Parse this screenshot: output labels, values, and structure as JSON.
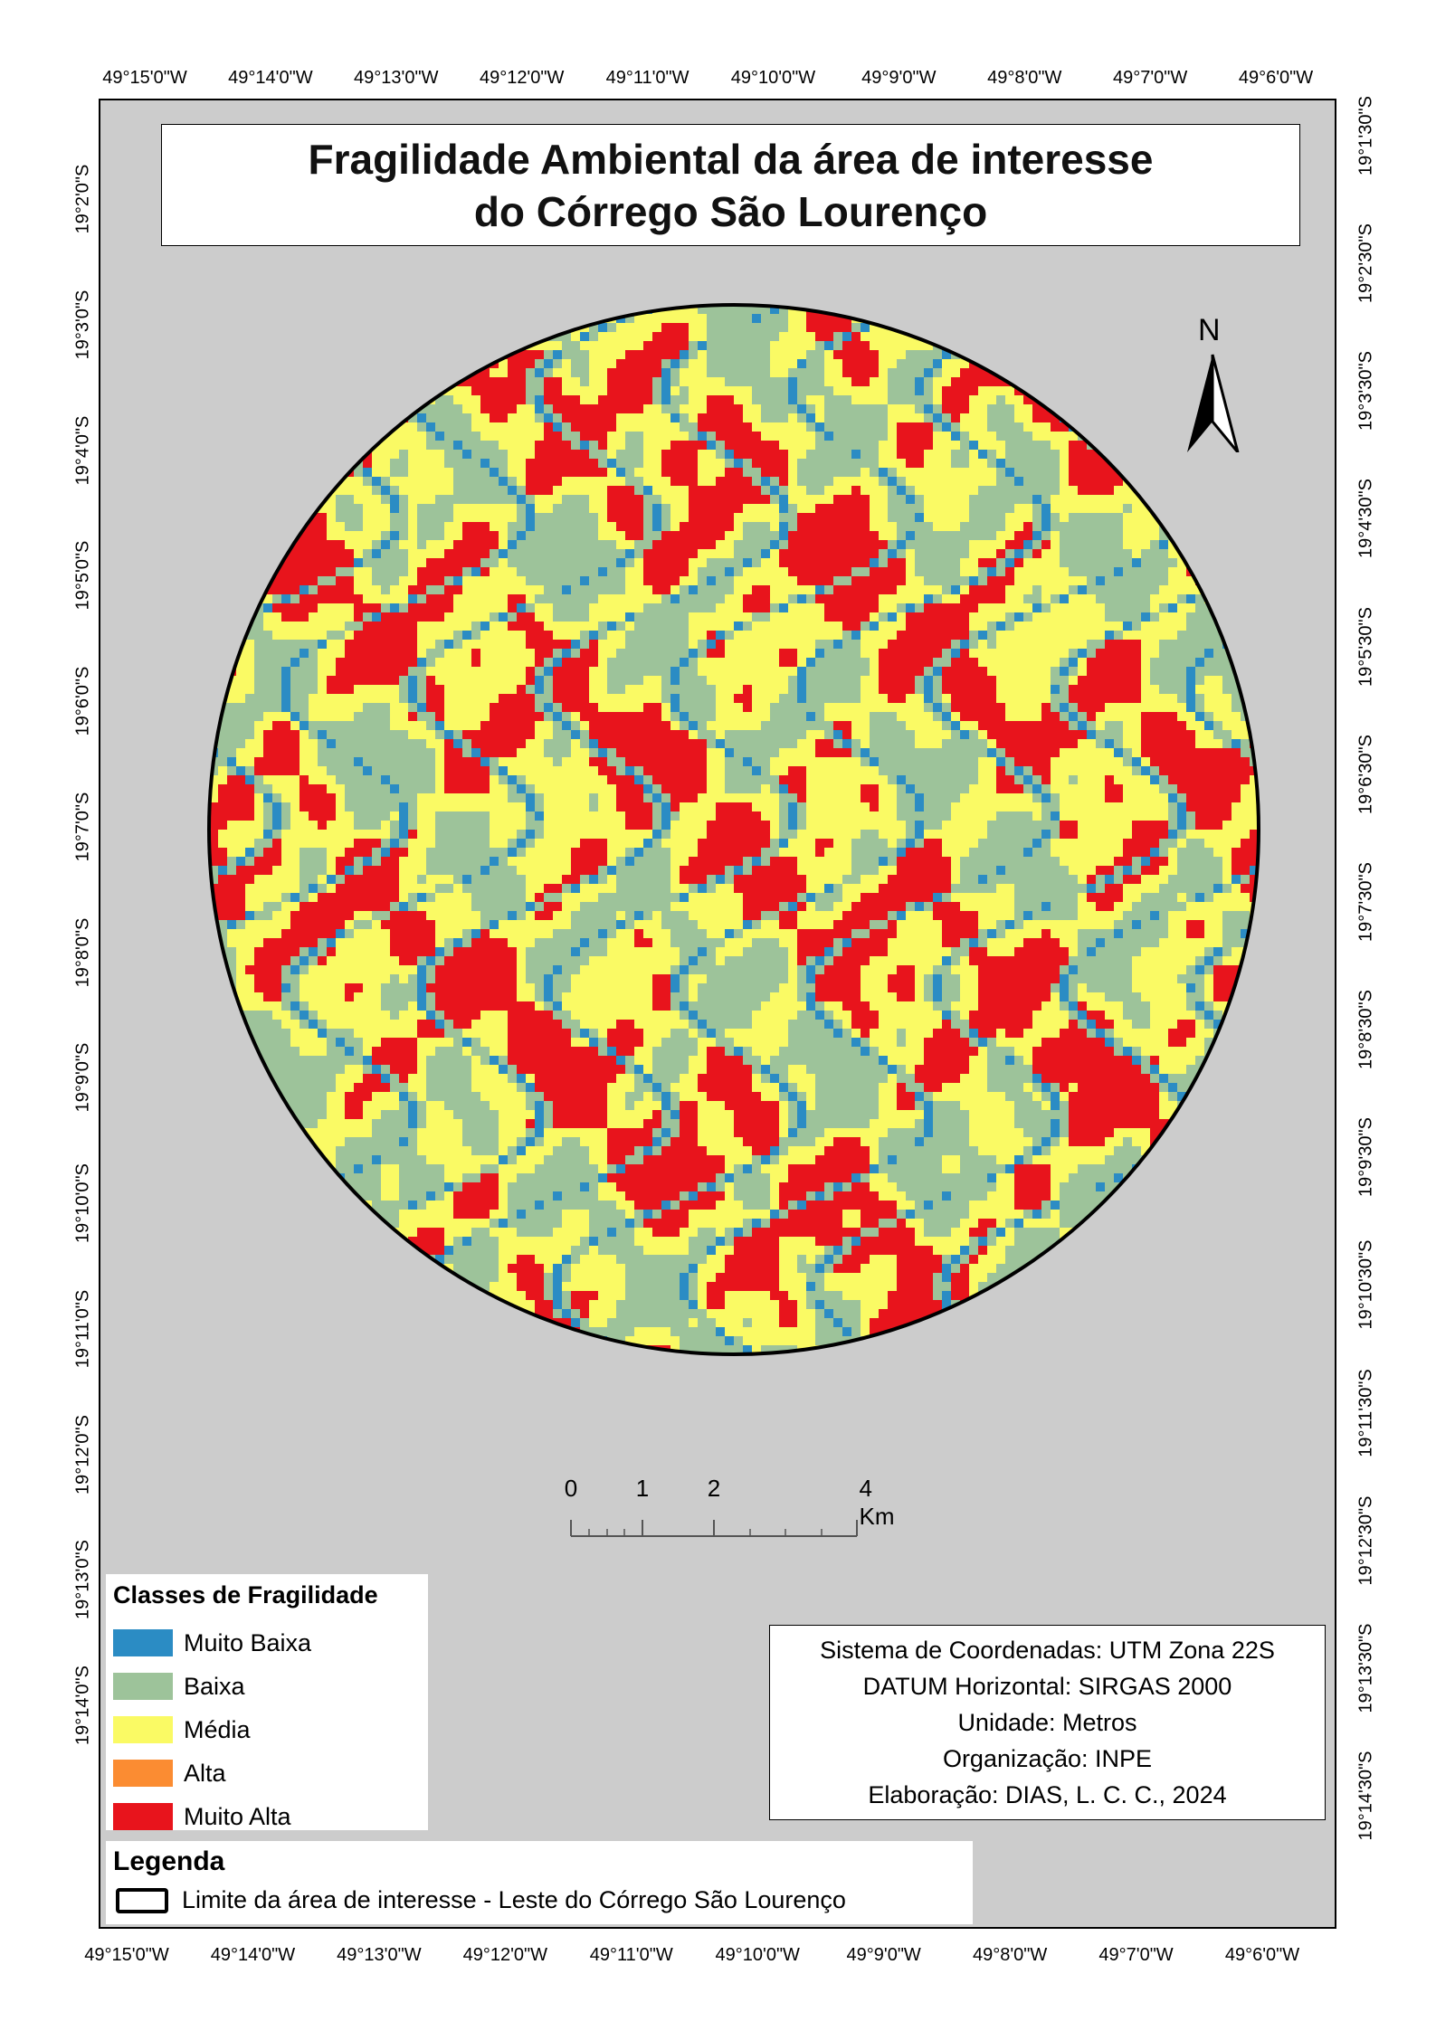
{
  "title": {
    "line1": "Fragilidade Ambiental da área de interesse",
    "line2": "do Córrego São Lourenço"
  },
  "graticule": {
    "longitude_labels": [
      "49°15'0\"W",
      "49°14'0\"W",
      "49°13'0\"W",
      "49°12'0\"W",
      "49°11'0\"W",
      "49°10'0\"W",
      "49°9'0\"W",
      "49°8'0\"W",
      "49°7'0\"W",
      "49°6'0\"W"
    ],
    "left_latitude_labels": [
      "19°2'0\"S",
      "19°3'0\"S",
      "19°4'0\"S",
      "19°5'0\"S",
      "19°6'0\"S",
      "19°7'0\"S",
      "19°8'0\"S",
      "19°9'0\"S",
      "19°10'0\"S",
      "19°11'0\"S",
      "19°12'0\"S",
      "19°13'0\"S",
      "19°14'0\"S"
    ],
    "right_latitude_labels": [
      "19°1'30\"S",
      "19°2'30\"S",
      "19°3'30\"S",
      "19°4'30\"S",
      "19°5'30\"S",
      "19°6'30\"S",
      "19°7'30\"S",
      "19°8'30\"S",
      "19°9'30\"S",
      "19°10'30\"S",
      "19°11'30\"S",
      "19°12'30\"S",
      "19°13'30\"S",
      "19°14'30\"S"
    ]
  },
  "north_arrow": {
    "label": "N",
    "icon": "north-arrow-icon"
  },
  "scale_bar": {
    "labels": [
      "0",
      "1",
      "2",
      "4 Km"
    ]
  },
  "legend_classes": {
    "title": "Classes de Fragilidade",
    "items": [
      {
        "label": "Muito Baixa",
        "color": "#2b8cc4"
      },
      {
        "label": "Baixa",
        "color": "#9dc39a"
      },
      {
        "label": "Média",
        "color": "#fafa64"
      },
      {
        "label": "Alta",
        "color": "#fb8c32"
      },
      {
        "label": "Muito Alta",
        "color": "#e8141c"
      }
    ]
  },
  "info": {
    "lines": [
      "Sistema de Coordenadas: UTM Zona 22S",
      "DATUM Horizontal: SIRGAS 2000",
      "Unidade: Metros",
      "Organização: INPE",
      "Elaboração: DIAS, L. C. C., 2024"
    ]
  },
  "legenda": {
    "title": "Legenda",
    "boundary_label": "Limite da área de interesse - Leste do Córrego São Lourenço"
  },
  "colors": {
    "frame_background": "#cccccc",
    "muito_baixa": "#2b8cc4",
    "baixa": "#9dc39a",
    "media": "#fafa64",
    "muito_alta": "#e8141c"
  }
}
